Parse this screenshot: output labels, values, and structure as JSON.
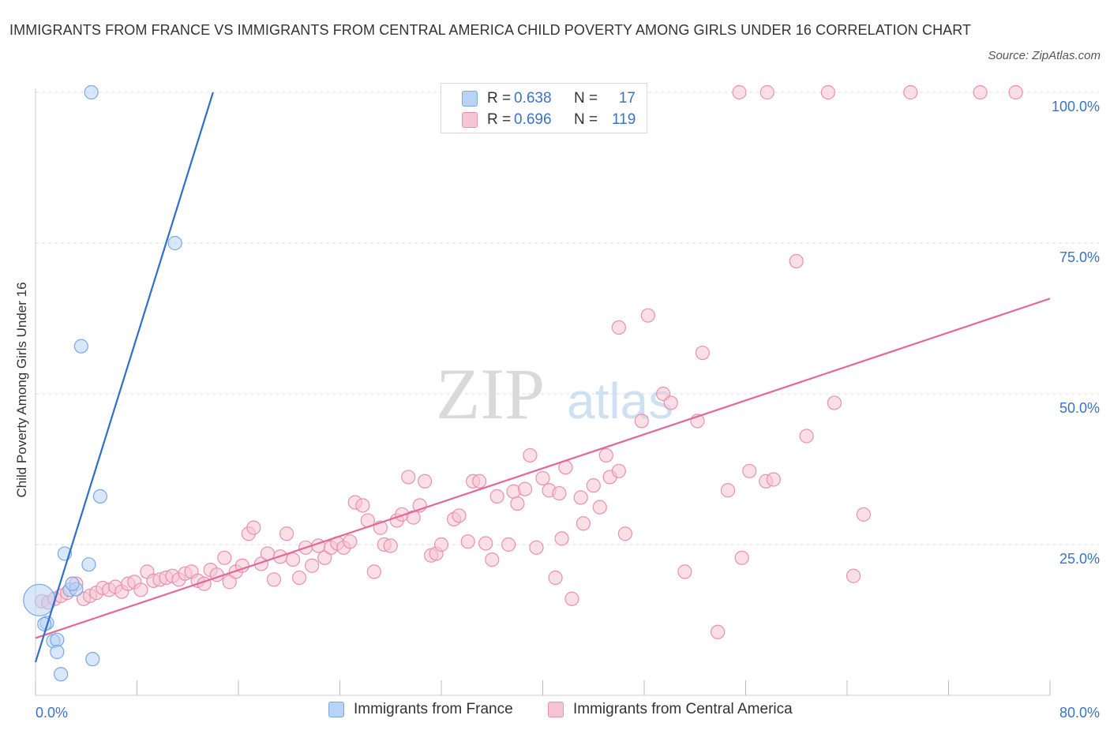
{
  "title": "IMMIGRANTS FROM FRANCE VS IMMIGRANTS FROM CENTRAL AMERICA CHILD POVERTY AMONG GIRLS UNDER 16 CORRELATION CHART",
  "source": "Source: ZipAtlas.com",
  "watermark": {
    "zip": "ZIP",
    "atlas": "atlas"
  },
  "legend_top": {
    "rows": [
      {
        "r_label": "R =",
        "r_value": "0.638",
        "n_label": "N =",
        "n_value": "17"
      },
      {
        "r_label": "R =",
        "r_value": "0.696",
        "n_label": "N =",
        "n_value": "119"
      }
    ]
  },
  "legend_bottom": [
    "Immigrants from France",
    "Immigrants from Central America"
  ],
  "colors": {
    "france_fill": "#b8d3f5",
    "france_stroke": "#7aa8e0",
    "france_line": "#2f6fcc",
    "ca_fill": "#f8c4d4",
    "ca_stroke": "#eb8fae",
    "ca_line": "#e2689a",
    "grid": "#dddddd",
    "axis_label": "#3a73c6"
  },
  "chart_data": {
    "type": "scatter",
    "title": "IMMIGRANTS FROM FRANCE VS IMMIGRANTS FROM CENTRAL AMERICA CHILD POVERTY AMONG GIRLS UNDER 16 CORRELATION CHART",
    "ylabel": "Child Poverty Among Girls Under 16",
    "xlabel": "",
    "xlim": [
      0,
      80
    ],
    "ylim": [
      0,
      100
    ],
    "x_tick_labels": [
      "0.0%",
      "80.0%"
    ],
    "y_tick_labels": [
      "25.0%",
      "50.0%",
      "75.0%",
      "100.0%"
    ],
    "y_ticks": [
      25,
      50,
      75,
      100
    ],
    "grid": "horizontal dashed",
    "legend_placement": "bottom",
    "series": [
      {
        "name": "Immigrants from France",
        "R": 0.638,
        "N": 17,
        "trend": {
          "x": [
            0,
            14
          ],
          "y": [
            5.5,
            100
          ]
        },
        "points": [
          {
            "x": 0.3,
            "y": 15.8,
            "big": true
          },
          {
            "x": 4.4,
            "y": 100
          },
          {
            "x": 11.0,
            "y": 75.0
          },
          {
            "x": 3.6,
            "y": 57.9
          },
          {
            "x": 5.1,
            "y": 33.0
          },
          {
            "x": 2.3,
            "y": 23.5
          },
          {
            "x": 4.2,
            "y": 21.7
          },
          {
            "x": 4.5,
            "y": 6.0
          },
          {
            "x": 2.7,
            "y": 17.5
          },
          {
            "x": 3.2,
            "y": 17.6
          },
          {
            "x": 0.9,
            "y": 12.0
          },
          {
            "x": 1.4,
            "y": 9.0
          },
          {
            "x": 1.7,
            "y": 9.2
          },
          {
            "x": 1.7,
            "y": 7.2
          },
          {
            "x": 2.0,
            "y": 3.5
          },
          {
            "x": 2.9,
            "y": 18.5
          },
          {
            "x": 0.7,
            "y": 11.8
          }
        ]
      },
      {
        "name": "Immigrants from Central America",
        "R": 0.696,
        "N": 119,
        "trend": {
          "x": [
            0,
            80
          ],
          "y": [
            9.5,
            65.8
          ]
        },
        "points": [
          {
            "x": 0.5,
            "y": 15.6
          },
          {
            "x": 1.0,
            "y": 15.4
          },
          {
            "x": 1.5,
            "y": 16.0
          },
          {
            "x": 2.0,
            "y": 16.5
          },
          {
            "x": 2.5,
            "y": 17.0
          },
          {
            "x": 3.2,
            "y": 18.5
          },
          {
            "x": 3.8,
            "y": 16.0
          },
          {
            "x": 4.3,
            "y": 16.5
          },
          {
            "x": 4.8,
            "y": 17.0
          },
          {
            "x": 5.3,
            "y": 17.8
          },
          {
            "x": 5.8,
            "y": 17.5
          },
          {
            "x": 6.3,
            "y": 18.0
          },
          {
            "x": 6.8,
            "y": 17.2
          },
          {
            "x": 7.3,
            "y": 18.5
          },
          {
            "x": 7.8,
            "y": 18.8
          },
          {
            "x": 8.3,
            "y": 17.5
          },
          {
            "x": 8.8,
            "y": 20.5
          },
          {
            "x": 9.3,
            "y": 19.0
          },
          {
            "x": 9.8,
            "y": 19.2
          },
          {
            "x": 10.3,
            "y": 19.5
          },
          {
            "x": 10.8,
            "y": 19.8
          },
          {
            "x": 11.3,
            "y": 19.2
          },
          {
            "x": 11.8,
            "y": 20.2
          },
          {
            "x": 12.3,
            "y": 20.5
          },
          {
            "x": 12.8,
            "y": 19.0
          },
          {
            "x": 13.3,
            "y": 18.5
          },
          {
            "x": 13.8,
            "y": 20.8
          },
          {
            "x": 14.3,
            "y": 20.0
          },
          {
            "x": 14.9,
            "y": 22.8
          },
          {
            "x": 15.3,
            "y": 18.8
          },
          {
            "x": 15.8,
            "y": 20.5
          },
          {
            "x": 16.3,
            "y": 21.5
          },
          {
            "x": 16.8,
            "y": 26.8
          },
          {
            "x": 17.2,
            "y": 27.8
          },
          {
            "x": 17.8,
            "y": 21.8
          },
          {
            "x": 18.3,
            "y": 23.5
          },
          {
            "x": 18.8,
            "y": 19.2
          },
          {
            "x": 19.3,
            "y": 23.0
          },
          {
            "x": 19.8,
            "y": 26.8
          },
          {
            "x": 20.3,
            "y": 22.5
          },
          {
            "x": 20.8,
            "y": 19.5
          },
          {
            "x": 21.3,
            "y": 24.5
          },
          {
            "x": 21.8,
            "y": 21.5
          },
          {
            "x": 22.3,
            "y": 24.8
          },
          {
            "x": 22.8,
            "y": 22.8
          },
          {
            "x": 23.3,
            "y": 24.5
          },
          {
            "x": 23.8,
            "y": 25.2
          },
          {
            "x": 24.3,
            "y": 24.5
          },
          {
            "x": 24.8,
            "y": 25.5
          },
          {
            "x": 25.2,
            "y": 32.0
          },
          {
            "x": 25.8,
            "y": 31.5
          },
          {
            "x": 26.2,
            "y": 29.0
          },
          {
            "x": 26.7,
            "y": 20.5
          },
          {
            "x": 27.2,
            "y": 27.8
          },
          {
            "x": 27.5,
            "y": 25.0
          },
          {
            "x": 28.0,
            "y": 24.8
          },
          {
            "x": 28.5,
            "y": 29.0
          },
          {
            "x": 28.9,
            "y": 30.0
          },
          {
            "x": 29.4,
            "y": 36.2
          },
          {
            "x": 29.8,
            "y": 29.5
          },
          {
            "x": 30.3,
            "y": 31.5
          },
          {
            "x": 30.7,
            "y": 35.5
          },
          {
            "x": 31.2,
            "y": 23.2
          },
          {
            "x": 31.6,
            "y": 23.5
          },
          {
            "x": 32.0,
            "y": 25.0
          },
          {
            "x": 33.0,
            "y": 29.2
          },
          {
            "x": 33.4,
            "y": 29.8
          },
          {
            "x": 34.1,
            "y": 25.5
          },
          {
            "x": 34.5,
            "y": 35.5
          },
          {
            "x": 35.0,
            "y": 35.5
          },
          {
            "x": 35.5,
            "y": 25.2
          },
          {
            "x": 36.0,
            "y": 22.5
          },
          {
            "x": 36.4,
            "y": 33.0
          },
          {
            "x": 37.3,
            "y": 25.0
          },
          {
            "x": 37.7,
            "y": 33.8
          },
          {
            "x": 38.0,
            "y": 31.8
          },
          {
            "x": 38.6,
            "y": 34.2
          },
          {
            "x": 39.0,
            "y": 39.8
          },
          {
            "x": 39.5,
            "y": 24.5
          },
          {
            "x": 40.0,
            "y": 36.0
          },
          {
            "x": 40.5,
            "y": 34.0
          },
          {
            "x": 41.0,
            "y": 19.5
          },
          {
            "x": 41.3,
            "y": 33.5
          },
          {
            "x": 41.8,
            "y": 37.8
          },
          {
            "x": 42.3,
            "y": 16.0
          },
          {
            "x": 43.0,
            "y": 32.8
          },
          {
            "x": 43.2,
            "y": 28.5
          },
          {
            "x": 44.0,
            "y": 34.8
          },
          {
            "x": 44.5,
            "y": 31.2
          },
          {
            "x": 45.0,
            "y": 39.8
          },
          {
            "x": 45.3,
            "y": 36.2
          },
          {
            "x": 46.0,
            "y": 37.2
          },
          {
            "x": 46.5,
            "y": 26.8
          },
          {
            "x": 47.8,
            "y": 45.5
          },
          {
            "x": 48.3,
            "y": 63.0
          },
          {
            "x": 49.5,
            "y": 50.0
          },
          {
            "x": 50.1,
            "y": 48.5
          },
          {
            "x": 51.2,
            "y": 20.5
          },
          {
            "x": 52.2,
            "y": 45.5
          },
          {
            "x": 52.6,
            "y": 56.8
          },
          {
            "x": 53.8,
            "y": 10.5
          },
          {
            "x": 54.6,
            "y": 34.0
          },
          {
            "x": 55.7,
            "y": 22.8
          },
          {
            "x": 56.3,
            "y": 37.2
          },
          {
            "x": 57.6,
            "y": 35.5
          },
          {
            "x": 58.2,
            "y": 35.8
          },
          {
            "x": 60.0,
            "y": 72.0
          },
          {
            "x": 60.8,
            "y": 43.0
          },
          {
            "x": 63.0,
            "y": 48.5
          },
          {
            "x": 64.5,
            "y": 19.8
          },
          {
            "x": 65.3,
            "y": 30.0
          },
          {
            "x": 55.5,
            "y": 100
          },
          {
            "x": 57.7,
            "y": 100
          },
          {
            "x": 62.5,
            "y": 100
          },
          {
            "x": 69.0,
            "y": 100
          },
          {
            "x": 74.5,
            "y": 100
          },
          {
            "x": 77.3,
            "y": 100
          },
          {
            "x": 41.5,
            "y": 26.0
          },
          {
            "x": 46.0,
            "y": 61.0
          }
        ]
      }
    ]
  }
}
